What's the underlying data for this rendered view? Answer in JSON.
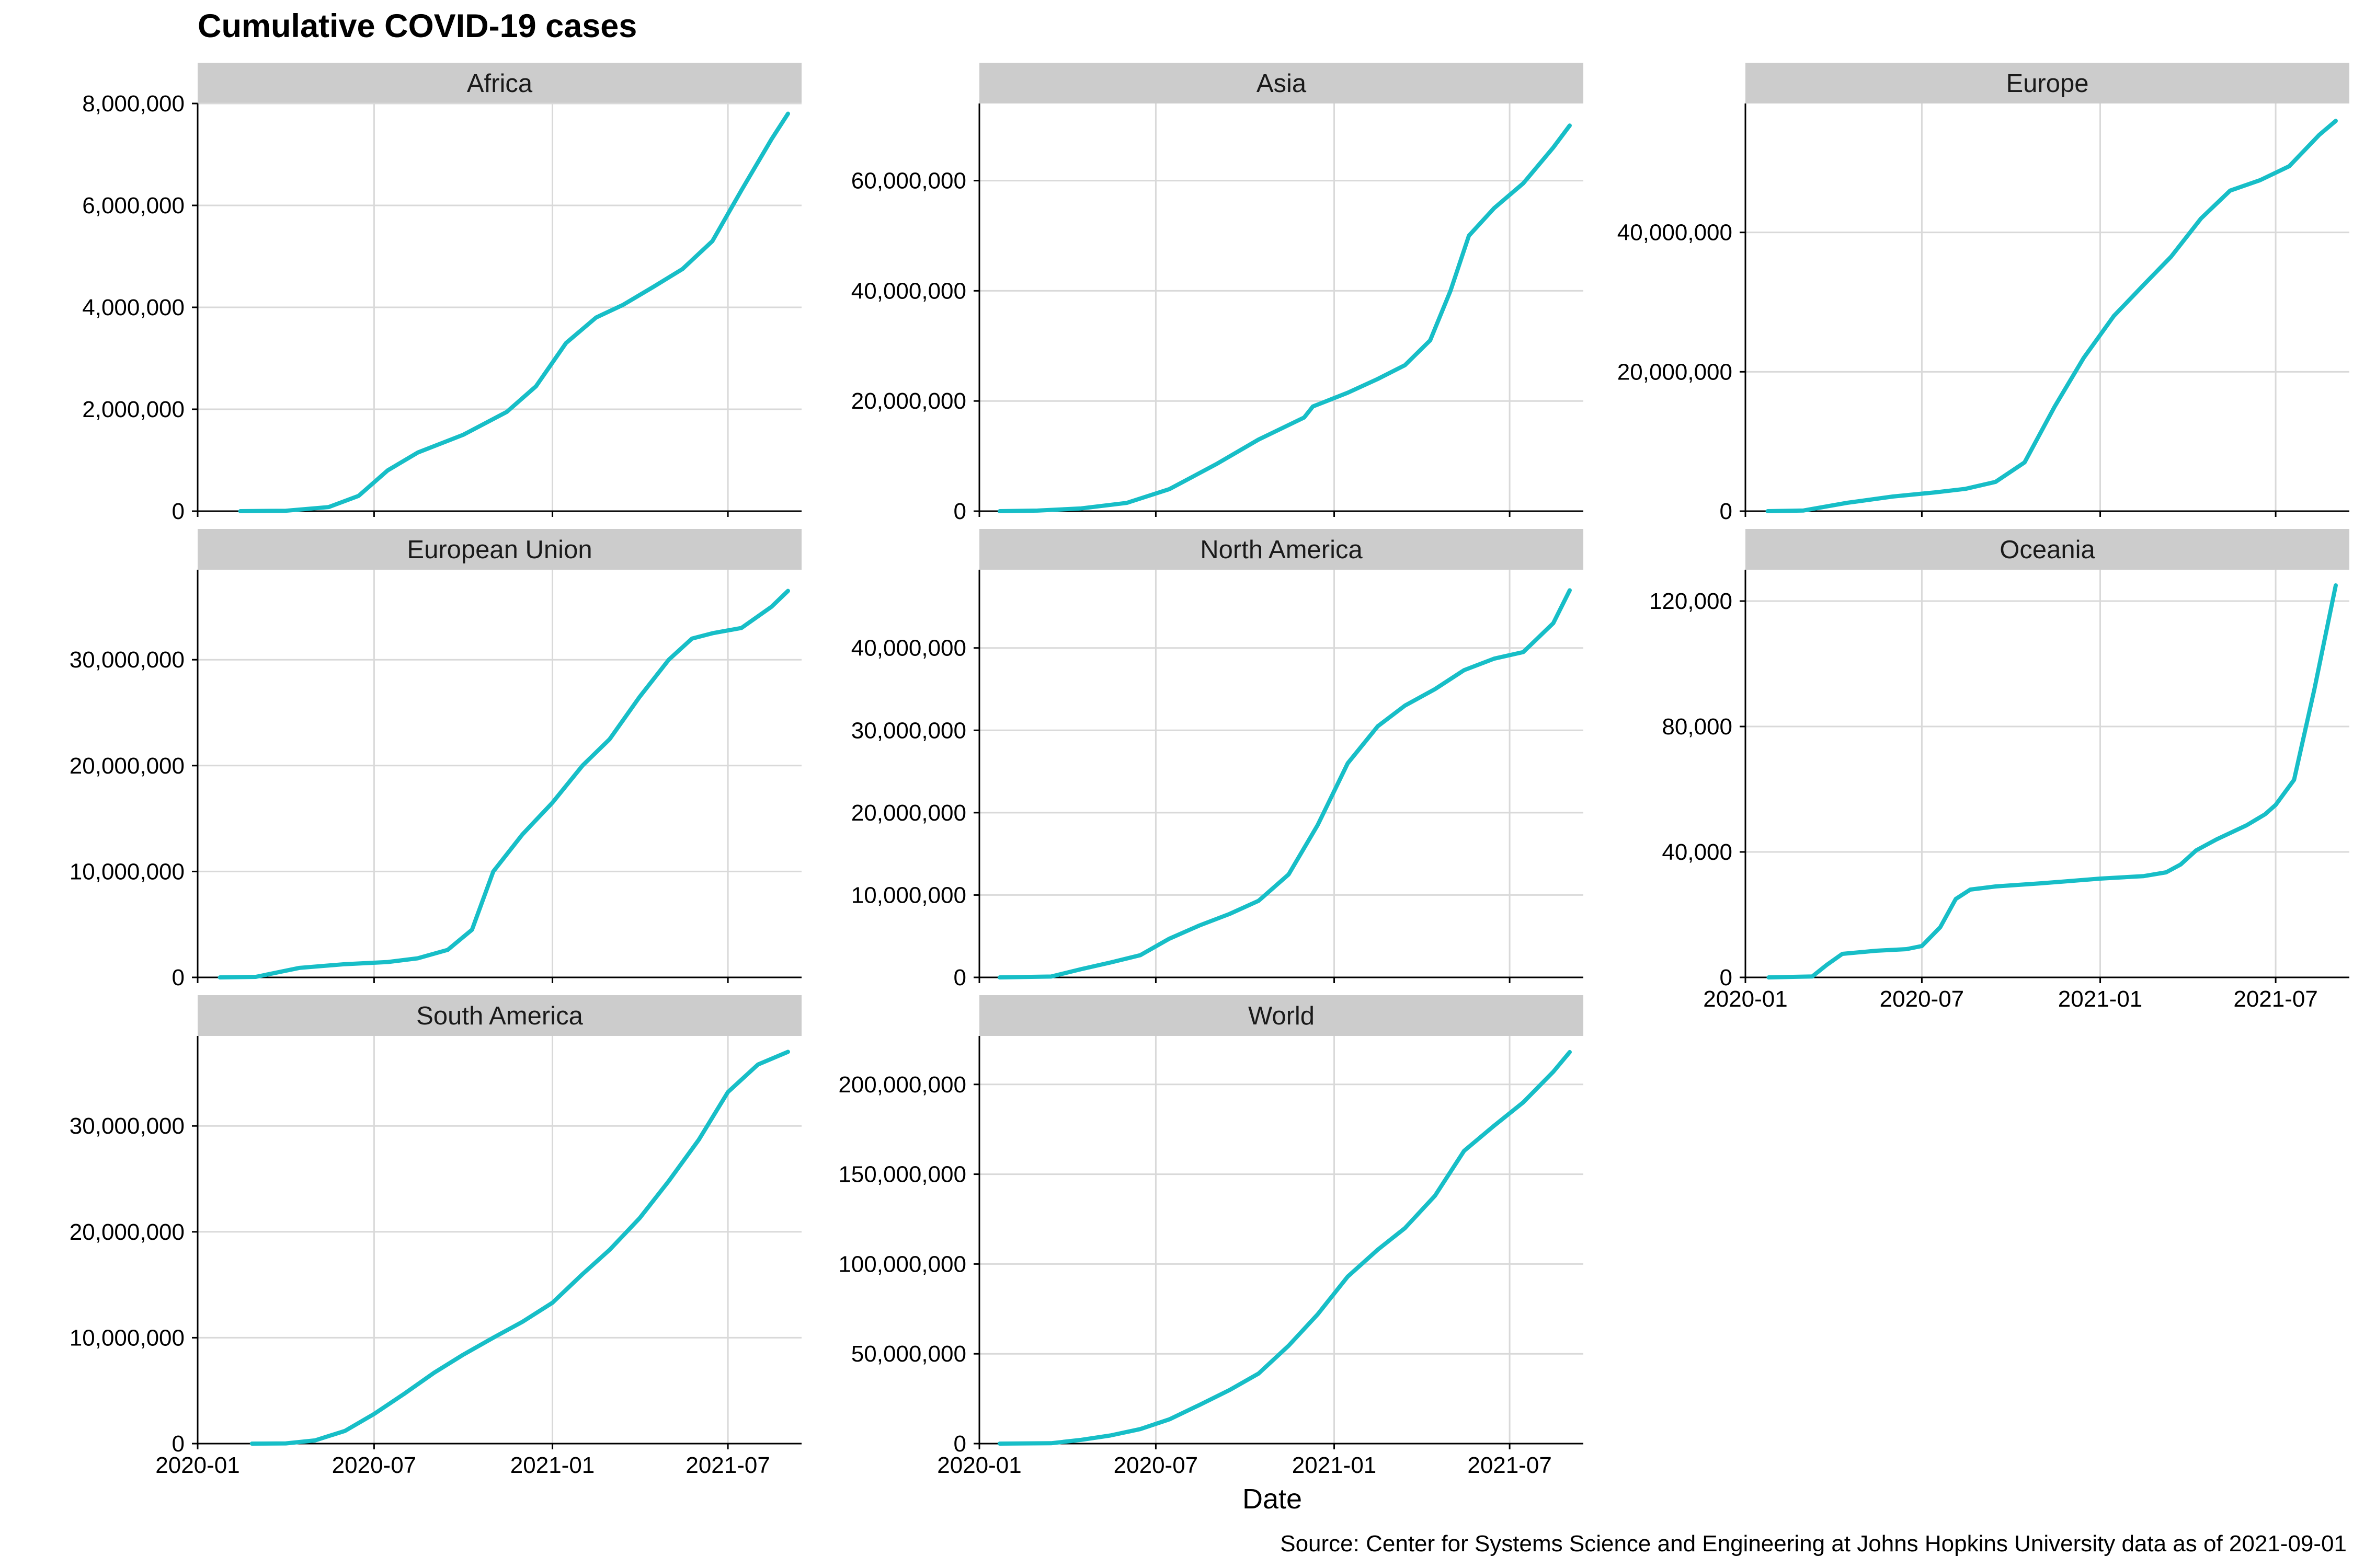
{
  "title": "Cumulative COVID-19 cases",
  "xlabel": "Date",
  "caption": "Source: Center for Systems Science and Engineering at Johns Hopkins University data as of 2021-09-01",
  "colors": {
    "line": "#17bec7",
    "strip": "#cccccc",
    "grid": "#d9d9d9",
    "axis": "#000000"
  },
  "chart_data": [
    {
      "type": "line",
      "panel": "Africa",
      "xlim": [
        "2020-01-01",
        "2021-09-15"
      ],
      "ylim": [
        0,
        8000000
      ],
      "xticks": [
        "2020-01",
        "2020-07",
        "2021-01",
        "2021-07"
      ],
      "yticks": [
        0,
        2000000,
        4000000,
        6000000,
        8000000
      ],
      "ytick_labels": [
        "0",
        "2,000,000",
        "4,000,000",
        "6,000,000",
        "8,000,000"
      ],
      "x": [
        "2020-02-14",
        "2020-04-01",
        "2020-05-15",
        "2020-06-15",
        "2020-07-15",
        "2020-08-15",
        "2020-10-01",
        "2020-11-15",
        "2020-12-15",
        "2021-01-15",
        "2021-02-15",
        "2021-03-15",
        "2021-04-15",
        "2021-05-15",
        "2021-06-15",
        "2021-07-15",
        "2021-08-15",
        "2021-09-01"
      ],
      "y": [
        0,
        8000,
        80000,
        300000,
        800000,
        1150000,
        1500000,
        1950000,
        2450000,
        3300000,
        3800000,
        4050000,
        4400000,
        4750000,
        5300000,
        6300000,
        7300000,
        7800000
      ]
    },
    {
      "type": "line",
      "panel": "Asia",
      "xlim": [
        "2020-01-01",
        "2021-09-15"
      ],
      "ylim": [
        0,
        74000000
      ],
      "xticks": [
        "2020-01",
        "2020-07",
        "2021-01",
        "2021-07"
      ],
      "yticks": [
        0,
        20000000,
        40000000,
        60000000
      ],
      "ytick_labels": [
        "0",
        "20,000,000",
        "40,000,000",
        "60,000,000"
      ],
      "x": [
        "2020-01-22",
        "2020-03-01",
        "2020-04-15",
        "2020-06-01",
        "2020-07-15",
        "2020-09-01",
        "2020-10-15",
        "2020-12-01",
        "2020-12-10",
        "2021-01-15",
        "2021-02-15",
        "2021-03-15",
        "2021-04-10",
        "2021-05-01",
        "2021-05-20",
        "2021-06-15",
        "2021-07-15",
        "2021-08-15",
        "2021-09-01"
      ],
      "y": [
        0,
        100000,
        500000,
        1500000,
        4000000,
        8500000,
        13000000,
        17000000,
        19000000,
        21500000,
        24000000,
        26500000,
        31000000,
        40000000,
        50000000,
        55000000,
        59500000,
        66000000,
        70000000
      ]
    },
    {
      "type": "line",
      "panel": "Europe",
      "xlim": [
        "2020-01-01",
        "2021-09-15"
      ],
      "ylim": [
        0,
        58500000
      ],
      "xticks": [
        "2020-01",
        "2020-07",
        "2021-01",
        "2021-07"
      ],
      "yticks": [
        0,
        20000000,
        40000000
      ],
      "ytick_labels": [
        "0",
        "20,000,000",
        "40,000,000"
      ],
      "x": [
        "2020-01-24",
        "2020-03-01",
        "2020-04-15",
        "2020-06-01",
        "2020-07-15",
        "2020-08-15",
        "2020-09-15",
        "2020-10-15",
        "2020-11-15",
        "2020-12-15",
        "2021-01-15",
        "2021-02-15",
        "2021-03-15",
        "2021-04-15",
        "2021-05-15",
        "2021-06-15",
        "2021-07-15",
        "2021-08-15",
        "2021-09-01"
      ],
      "y": [
        0,
        100000,
        1200000,
        2100000,
        2700000,
        3200000,
        4200000,
        7000000,
        15000000,
        22000000,
        28000000,
        32500000,
        36500000,
        42000000,
        46000000,
        47500000,
        49500000,
        54000000,
        56000000
      ]
    },
    {
      "type": "line",
      "panel": "European Union",
      "xlim": [
        "2020-01-01",
        "2021-09-15"
      ],
      "ylim": [
        0,
        38500000
      ],
      "xticks": [
        "2020-01",
        "2020-07",
        "2021-01",
        "2021-07"
      ],
      "yticks": [
        0,
        10000000,
        20000000,
        30000000
      ],
      "ytick_labels": [
        "0",
        "10,000,000",
        "20,000,000",
        "30,000,000"
      ],
      "x": [
        "2020-01-24",
        "2020-03-01",
        "2020-04-15",
        "2020-06-01",
        "2020-07-15",
        "2020-08-15",
        "2020-09-15",
        "2020-10-10",
        "2020-11-01",
        "2020-12-01",
        "2021-01-01",
        "2021-02-01",
        "2021-03-01",
        "2021-04-01",
        "2021-05-01",
        "2021-05-25",
        "2021-06-15",
        "2021-07-15",
        "2021-08-15",
        "2021-09-01"
      ],
      "y": [
        0,
        50000,
        900000,
        1250000,
        1450000,
        1800000,
        2600000,
        4500000,
        10000000,
        13500000,
        16500000,
        20000000,
        22500000,
        26500000,
        30000000,
        32000000,
        32500000,
        33000000,
        35000000,
        36500000
      ]
    },
    {
      "type": "line",
      "panel": "North America",
      "xlim": [
        "2020-01-01",
        "2021-09-15"
      ],
      "ylim": [
        0,
        49500000
      ],
      "xticks": [
        "2020-01",
        "2020-07",
        "2021-01",
        "2021-07"
      ],
      "yticks": [
        0,
        10000000,
        20000000,
        30000000,
        40000000
      ],
      "ytick_labels": [
        "0",
        "10,000,000",
        "20,000,000",
        "30,000,000",
        "40,000,000"
      ],
      "x": [
        "2020-01-22",
        "2020-03-15",
        "2020-04-15",
        "2020-05-15",
        "2020-06-15",
        "2020-07-15",
        "2020-08-15",
        "2020-09-15",
        "2020-10-15",
        "2020-11-15",
        "2020-12-15",
        "2021-01-15",
        "2021-02-15",
        "2021-03-15",
        "2021-04-15",
        "2021-05-15",
        "2021-06-15",
        "2021-07-15",
        "2021-08-15",
        "2021-09-01"
      ],
      "y": [
        0,
        100000,
        1000000,
        1800000,
        2700000,
        4700000,
        6300000,
        7700000,
        9300000,
        12500000,
        18500000,
        26000000,
        30500000,
        33000000,
        35000000,
        37300000,
        38700000,
        39500000,
        43000000,
        47000000
      ]
    },
    {
      "type": "line",
      "panel": "Oceania",
      "xlim": [
        "2020-01-01",
        "2021-09-15"
      ],
      "ylim": [
        0,
        130000
      ],
      "xticks": [
        "2020-01",
        "2020-07",
        "2021-01",
        "2021-07"
      ],
      "yticks": [
        0,
        40000,
        80000,
        120000
      ],
      "ytick_labels": [
        "0",
        "40,000",
        "80,000",
        "120,000"
      ],
      "x": [
        "2020-01-25",
        "2020-03-10",
        "2020-03-25",
        "2020-04-10",
        "2020-05-15",
        "2020-06-15",
        "2020-07-01",
        "2020-07-20",
        "2020-08-05",
        "2020-08-20",
        "2020-09-15",
        "2020-11-01",
        "2021-01-01",
        "2021-02-15",
        "2021-03-10",
        "2021-03-25",
        "2021-04-10",
        "2021-05-01",
        "2021-06-01",
        "2021-06-20",
        "2021-07-01",
        "2021-07-20",
        "2021-08-10",
        "2021-09-01"
      ],
      "y": [
        0,
        300,
        4000,
        7500,
        8500,
        9000,
        10000,
        16000,
        25000,
        28000,
        29000,
        30000,
        31500,
        32300,
        33500,
        36000,
        40500,
        44000,
        48500,
        52000,
        55000,
        63000,
        92000,
        125000
      ]
    },
    {
      "type": "line",
      "panel": "South America",
      "xlim": [
        "2020-01-01",
        "2021-09-15"
      ],
      "ylim": [
        0,
        38500000
      ],
      "xticks": [
        "2020-01",
        "2020-07",
        "2021-01",
        "2021-07"
      ],
      "yticks": [
        0,
        10000000,
        20000000,
        30000000
      ],
      "ytick_labels": [
        "0",
        "10,000,000",
        "20,000,000",
        "30,000,000"
      ],
      "x": [
        "2020-02-26",
        "2020-04-01",
        "2020-05-01",
        "2020-06-01",
        "2020-07-01",
        "2020-08-01",
        "2020-09-01",
        "2020-10-01",
        "2020-11-01",
        "2020-12-01",
        "2021-01-01",
        "2021-02-01",
        "2021-03-01",
        "2021-04-01",
        "2021-05-01",
        "2021-06-01",
        "2021-07-01",
        "2021-08-01",
        "2021-09-01"
      ],
      "y": [
        0,
        20000,
        300000,
        1200000,
        2800000,
        4700000,
        6700000,
        8400000,
        10000000,
        11500000,
        13300000,
        16000000,
        18300000,
        21300000,
        24800000,
        28700000,
        33200000,
        35800000,
        37000000
      ]
    },
    {
      "type": "line",
      "panel": "World",
      "xlim": [
        "2020-01-01",
        "2021-09-15"
      ],
      "ylim": [
        0,
        227000000
      ],
      "xticks": [
        "2020-01",
        "2020-07",
        "2021-01",
        "2021-07"
      ],
      "yticks": [
        0,
        50000000,
        100000000,
        150000000,
        200000000
      ],
      "ytick_labels": [
        "0",
        "50,000,000",
        "100,000,000",
        "150,000,000",
        "200,000,000"
      ],
      "x": [
        "2020-01-22",
        "2020-03-15",
        "2020-04-15",
        "2020-05-15",
        "2020-06-15",
        "2020-07-15",
        "2020-08-15",
        "2020-09-15",
        "2020-10-15",
        "2020-11-15",
        "2020-12-15",
        "2021-01-15",
        "2021-02-15",
        "2021-03-15",
        "2021-04-15",
        "2021-05-15",
        "2021-06-15",
        "2021-07-15",
        "2021-08-15",
        "2021-09-01"
      ],
      "y": [
        0,
        200000,
        2100000,
        4500000,
        8100000,
        13500000,
        21500000,
        29800000,
        39000000,
        54500000,
        72000000,
        93000000,
        108000000,
        120000000,
        138000000,
        163000000,
        177000000,
        190000000,
        207000000,
        218000000
      ]
    }
  ]
}
